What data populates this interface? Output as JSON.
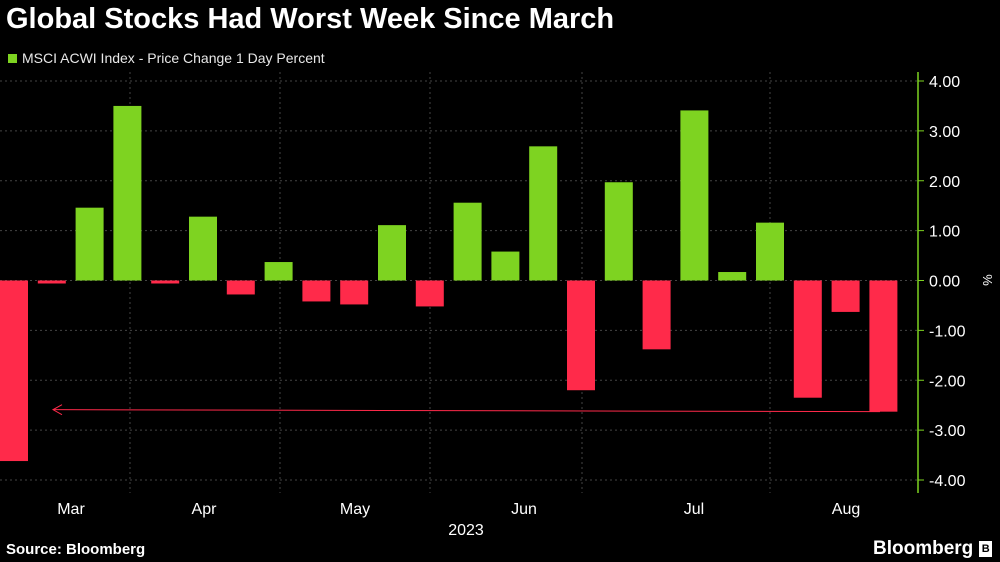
{
  "title": "Global Stocks Had Worst Week Since March",
  "legend": {
    "label": "MSCI ACWI Index - Price Change 1 Day Percent",
    "color": "#7ed321"
  },
  "source": "Source: Bloomberg",
  "brand": "Bloomberg",
  "colors": {
    "positive": "#7ed321",
    "negative": "#ff2a4a",
    "grid": "#444444",
    "axis": "#7ed321"
  },
  "chart_data": {
    "type": "bar",
    "title": "Global Stocks Had Worst Week Since March",
    "ylabel": "%",
    "ylim": [
      -4,
      4
    ],
    "y_ticks": [
      "4.00",
      "3.00",
      "2.00",
      "1.00",
      "0.00",
      "-1.00",
      "-2.00",
      "-3.00",
      "-4.00"
    ],
    "y_tick_values": [
      4,
      3,
      2,
      1,
      0,
      -1,
      -2,
      -3,
      -4
    ],
    "x_month_labels": [
      "Mar",
      "Apr",
      "May",
      "Jun",
      "Jul",
      "Aug"
    ],
    "x_year_label": "2023",
    "series": [
      {
        "name": "MSCI ACWI Index - Price Change 1 Day Percent",
        "values": [
          -3.62,
          -0.06,
          1.46,
          3.5,
          -0.06,
          1.28,
          -0.28,
          0.37,
          -0.42,
          -0.48,
          1.11,
          -0.52,
          1.56,
          0.58,
          2.69,
          -2.2,
          1.97,
          -1.38,
          3.41,
          0.17,
          1.16,
          -2.35,
          -0.63,
          -2.63
        ]
      }
    ],
    "annotation": {
      "type": "arrow",
      "value": -2.63,
      "description": "reference line at latest weekly loss"
    },
    "grid": true
  }
}
